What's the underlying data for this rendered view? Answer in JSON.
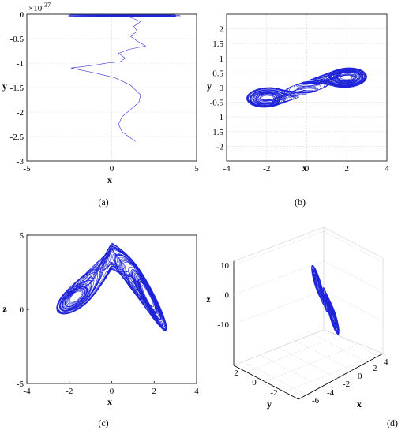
{
  "chart_data": [
    {
      "id": "a",
      "type": "line",
      "caption": "(a)",
      "xlabel": "x",
      "ylabel": "y",
      "exponent_label": "×10",
      "exponent_power": "37",
      "xlim": [
        -5,
        5
      ],
      "ylim": [
        -3,
        0
      ],
      "xticks": [
        -5,
        0,
        5
      ],
      "yticks": [
        0,
        -0.5,
        -1,
        -1.5,
        -2,
        -2.5,
        -3
      ],
      "ytick_labels": [
        "0",
        "-0.5",
        "-1",
        "-1.5",
        "-2",
        "-2.5",
        "-3"
      ],
      "grid": true,
      "series_color": "#1f24d8",
      "x": [
        1.0,
        1.7,
        1.3,
        1.5,
        1.1,
        1.5,
        2.0,
        1.0,
        0.4,
        0.8,
        0.5,
        -0.3,
        -1.2,
        -2.4,
        -1.0,
        0.2,
        1.1,
        1.4,
        1.7,
        1.6,
        1.1,
        0.6,
        0.4,
        0.6,
        1.0,
        1.4
      ],
      "y": [
        -0.05,
        -0.15,
        -0.25,
        -0.35,
        -0.45,
        -0.55,
        -0.65,
        -0.72,
        -0.8,
        -0.9,
        -0.97,
        -1.0,
        -1.05,
        -1.1,
        -1.2,
        -1.3,
        -1.45,
        -1.55,
        -1.65,
        -1.8,
        -1.95,
        -2.1,
        -2.25,
        -2.4,
        -2.5,
        -2.6
      ]
    },
    {
      "id": "b",
      "type": "line",
      "caption": "(b)",
      "xlabel": "x",
      "ylabel": "y",
      "xlim": [
        -4,
        4
      ],
      "ylim": [
        -2.5,
        2.5
      ],
      "xticks": [
        -4,
        -2,
        0,
        2,
        4
      ],
      "yticks": [
        2,
        1.5,
        1,
        0.5,
        0,
        -0.5,
        -1,
        -1.5,
        -2
      ],
      "ytick_labels": [
        "2",
        "1.5",
        "1",
        "0.5",
        "0",
        "-0.5",
        "-1",
        "-1.5",
        "-2"
      ],
      "grid": true,
      "series_color": "#1f24d8"
    },
    {
      "id": "c",
      "type": "line",
      "caption": "(c)",
      "xlabel": "x",
      "ylabel": "z",
      "xlim": [
        -4,
        4
      ],
      "ylim": [
        -5,
        5
      ],
      "xticks": [
        -4,
        -2,
        0,
        2,
        4
      ],
      "yticks": [
        5,
        0,
        -5
      ],
      "ytick_labels": [
        "5",
        "0",
        "-5"
      ],
      "grid": false,
      "series_color": "#1f24d8"
    },
    {
      "id": "d",
      "type": "line",
      "caption": "(d)",
      "xlabel": "x",
      "ylabel": "y",
      "zlabel": "z",
      "zticks": [
        10,
        0,
        -10
      ],
      "ztick_labels": [
        "10",
        "0",
        "-10"
      ],
      "xticks_labels": [
        "4",
        "2",
        "0",
        "-2",
        "-4",
        "-6"
      ],
      "yticks_labels": [
        "2",
        "0",
        "-2"
      ],
      "grid": true,
      "series_color": "#1f24d8"
    }
  ]
}
